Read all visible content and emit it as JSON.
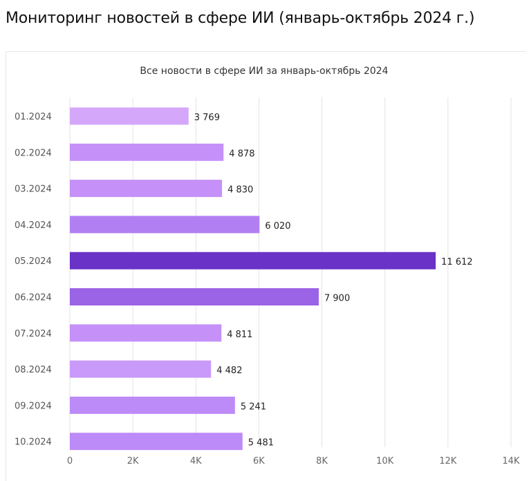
{
  "page": {
    "title": "Мониторинг новостей в сфере ИИ (январь-октябрь 2024 г.)"
  },
  "chart_data": {
    "type": "bar",
    "orientation": "horizontal",
    "title": "Все новости в сфере ИИ за январь-октябрь 2024",
    "categories": [
      "01.2024",
      "02.2024",
      "03.2024",
      "04.2024",
      "05.2024",
      "06.2024",
      "07.2024",
      "08.2024",
      "09.2024",
      "10.2024"
    ],
    "values": [
      3769,
      4878,
      4830,
      6020,
      11612,
      7900,
      4811,
      4482,
      5241,
      5481
    ],
    "value_labels": [
      "3 769",
      "4 878",
      "4 830",
      "6 020",
      "11 612",
      "7 900",
      "4 811",
      "4 482",
      "5 241",
      "5 481"
    ],
    "bar_colors": [
      "#d4a7fb",
      "#c591f9",
      "#c591f9",
      "#b27ff2",
      "#6a32c7",
      "#9b63e5",
      "#c591f9",
      "#c99af9",
      "#bd8bf7",
      "#bd8bf7"
    ],
    "x_ticks": [
      0,
      2000,
      4000,
      6000,
      8000,
      10000,
      12000,
      14000
    ],
    "x_tick_labels": [
      "0",
      "2K",
      "4K",
      "6K",
      "8K",
      "10K",
      "12K",
      "14K"
    ],
    "xlim": [
      0,
      14000
    ],
    "xlabel": "",
    "ylabel": "",
    "grid": true,
    "legend": "none"
  }
}
